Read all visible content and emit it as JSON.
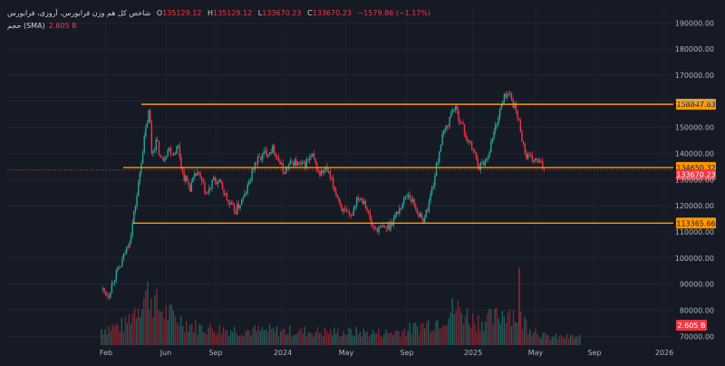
{
  "legend": {
    "title": "شاخص کل هم وزن فرابورس، آروزی، فرابورس",
    "open_label": "O",
    "open": "135129.12",
    "high_label": "H",
    "high": "135129.12",
    "low_label": "L",
    "low": "133670.23",
    "close_label": "C",
    "close": "133670.23",
    "change": "−1579.86 (−1.17%)",
    "volume_label": "حجم (SMA)",
    "volume_value": "2.605 B"
  },
  "colors": {
    "background": "#161a25",
    "up": "#26a69a",
    "down": "#f23645",
    "level": "#ff9800",
    "grid": "#262b3a",
    "axis_text": "#b2b5be"
  },
  "chart_data": {
    "type": "candlestick",
    "y_ticks": [
      70000,
      80000,
      90000,
      100000,
      110000,
      120000,
      130000,
      140000,
      150000,
      160000,
      170000,
      180000,
      190000
    ],
    "y_tick_labels": [
      "70000.00",
      "80000.00",
      "90000.00",
      "100000.00",
      "110000.00",
      "120000.00",
      "130000.00",
      "140000.00",
      "150000.00",
      "160000.00",
      "170000.00",
      "180000.00",
      "190000.00"
    ],
    "ylim": [
      67000,
      196000
    ],
    "x_ticks": [
      "Feb",
      "Jun",
      "Sep",
      "2024",
      "May",
      "Sep",
      "2025",
      "May",
      "Sep",
      "2026"
    ],
    "horizontal_levels": [
      {
        "value": 158847.63,
        "label": "158847.63",
        "color": "#ff9800"
      },
      {
        "value": 134650.32,
        "label": "134650.32",
        "color": "#ff9800"
      },
      {
        "value": 113365.66,
        "label": "113365.66",
        "color": "#ff9800"
      }
    ],
    "current_price": {
      "value": 133670.23,
      "label": "133670.23",
      "color": "#f23645"
    },
    "volume_badge": {
      "value": "2.605 B",
      "color": "#f23645"
    },
    "price_path": [
      [
        0.0,
        88000
      ],
      [
        0.015,
        86000
      ],
      [
        0.025,
        92000
      ],
      [
        0.04,
        97000
      ],
      [
        0.06,
        108000
      ],
      [
        0.075,
        125000
      ],
      [
        0.085,
        140000
      ],
      [
        0.095,
        152000
      ],
      [
        0.1,
        157000
      ],
      [
        0.105,
        140000
      ],
      [
        0.115,
        145000
      ],
      [
        0.125,
        137000
      ],
      [
        0.14,
        142000
      ],
      [
        0.15,
        140000
      ],
      [
        0.16,
        143000
      ],
      [
        0.17,
        132000
      ],
      [
        0.185,
        127000
      ],
      [
        0.2,
        133000
      ],
      [
        0.22,
        124000
      ],
      [
        0.235,
        130000
      ],
      [
        0.25,
        128000
      ],
      [
        0.265,
        121000
      ],
      [
        0.28,
        118000
      ],
      [
        0.3,
        124000
      ],
      [
        0.32,
        136000
      ],
      [
        0.34,
        140000
      ],
      [
        0.36,
        142000
      ],
      [
        0.38,
        133000
      ],
      [
        0.4,
        137000
      ],
      [
        0.42,
        135000
      ],
      [
        0.44,
        139000
      ],
      [
        0.455,
        132000
      ],
      [
        0.47,
        134000
      ],
      [
        0.49,
        125000
      ],
      [
        0.505,
        118000
      ],
      [
        0.52,
        115000
      ],
      [
        0.535,
        124000
      ],
      [
        0.55,
        122000
      ],
      [
        0.565,
        112000
      ],
      [
        0.58,
        111000
      ],
      [
        0.6,
        112000
      ],
      [
        0.62,
        118000
      ],
      [
        0.64,
        125000
      ],
      [
        0.655,
        120000
      ],
      [
        0.67,
        114000
      ],
      [
        0.68,
        118000
      ],
      [
        0.695,
        130000
      ],
      [
        0.71,
        145000
      ],
      [
        0.725,
        152000
      ],
      [
        0.735,
        158000
      ],
      [
        0.745,
        155000
      ],
      [
        0.755,
        150000
      ],
      [
        0.765,
        145000
      ],
      [
        0.775,
        142000
      ],
      [
        0.79,
        135000
      ],
      [
        0.805,
        138000
      ],
      [
        0.82,
        148000
      ],
      [
        0.835,
        158000
      ],
      [
        0.845,
        163000
      ],
      [
        0.855,
        162000
      ],
      [
        0.865,
        157000
      ],
      [
        0.875,
        150000
      ],
      [
        0.885,
        140000
      ],
      [
        0.895,
        138000
      ],
      [
        0.91,
        137000
      ],
      [
        0.925,
        134650
      ]
    ],
    "volume_profile": [
      [
        0.0,
        0.2
      ],
      [
        0.05,
        0.25
      ],
      [
        0.08,
        0.55
      ],
      [
        0.1,
        0.65
      ],
      [
        0.12,
        0.45
      ],
      [
        0.15,
        0.35
      ],
      [
        0.2,
        0.22
      ],
      [
        0.3,
        0.18
      ],
      [
        0.4,
        0.17
      ],
      [
        0.5,
        0.16
      ],
      [
        0.6,
        0.15
      ],
      [
        0.65,
        0.2
      ],
      [
        0.7,
        0.3
      ],
      [
        0.74,
        0.45
      ],
      [
        0.78,
        0.3
      ],
      [
        0.82,
        0.32
      ],
      [
        0.85,
        0.45
      ],
      [
        0.88,
        0.3
      ],
      [
        0.91,
        0.18
      ],
      [
        0.93,
        0.1
      ]
    ],
    "volume_spike": {
      "position": 0.873,
      "level": 0.95
    }
  }
}
